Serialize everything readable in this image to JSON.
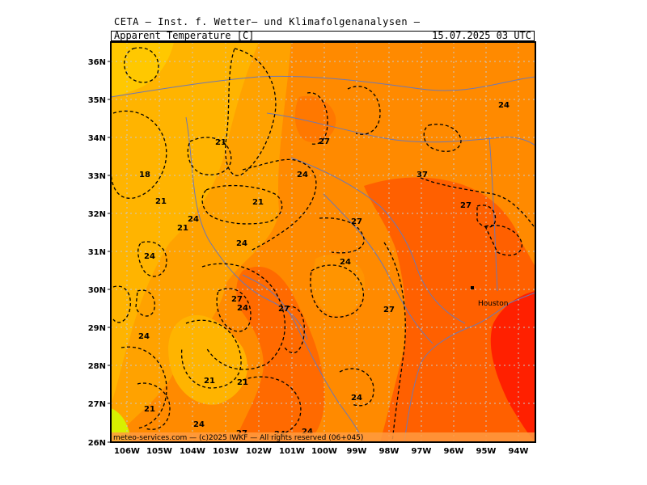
{
  "header": {
    "title": "CETA — Inst. f. Wetter— und Klimafolgenanalysen —",
    "variable": "Apparent_Temperature [C]",
    "datetime": "15.07.2025 03 UTC"
  },
  "axes": {
    "lon_labels": [
      "106W",
      "105W",
      "104W",
      "103W",
      "102W",
      "101W",
      "100W",
      "99W",
      "98W",
      "97W",
      "96W",
      "95W",
      "94W"
    ],
    "lat_labels": [
      "36N",
      "35N",
      "34N",
      "33N",
      "32N",
      "31N",
      "30N",
      "29N",
      "28N",
      "27N",
      "26N"
    ]
  },
  "colors": {
    "cold": "#ffe000",
    "mid": "#ffb000",
    "warm": "#ff8a00",
    "hot": "#ff5a00",
    "hottest": "#ff1800",
    "grid": "#c8c8c8",
    "rivers": "#6e78b4"
  },
  "contours": [
    {
      "text": "21"
    },
    {
      "text": "18"
    },
    {
      "text": "21"
    },
    {
      "text": "24"
    },
    {
      "text": "21"
    },
    {
      "text": "24"
    },
    {
      "text": "24"
    },
    {
      "text": "27"
    },
    {
      "text": "24"
    },
    {
      "text": "24"
    },
    {
      "text": "21"
    },
    {
      "text": "21"
    },
    {
      "text": "21"
    },
    {
      "text": "24"
    },
    {
      "text": "27"
    },
    {
      "text": "24"
    },
    {
      "text": "21"
    },
    {
      "text": "27"
    },
    {
      "text": "24"
    },
    {
      "text": "27"
    },
    {
      "text": "24"
    },
    {
      "text": "24"
    },
    {
      "text": "27"
    },
    {
      "text": "24"
    },
    {
      "text": "27"
    },
    {
      "text": "37"
    },
    {
      "text": "27"
    },
    {
      "text": "24"
    }
  ],
  "city": {
    "name": "Houston"
  },
  "footer": "meteo-services.com — (c)2025 IWKF — All rights reserved (06+045)"
}
